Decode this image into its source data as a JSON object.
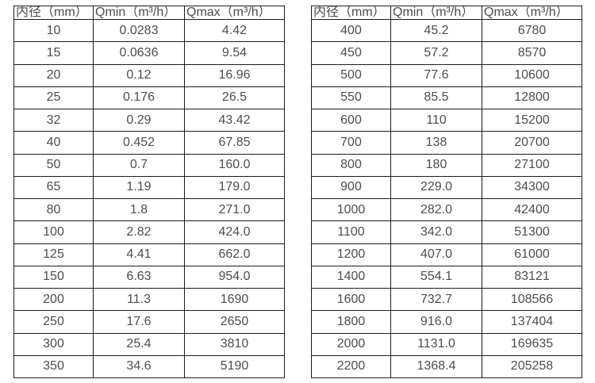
{
  "columns": [
    "内径（mm）",
    "Qmin（m³/h）",
    "Qmax（m³/h）"
  ],
  "tables": [
    {
      "name": "small-diameter-table",
      "rows": [
        [
          "10",
          "0.0283",
          "4.42"
        ],
        [
          "15",
          "0.0636",
          "9.54"
        ],
        [
          "20",
          "0.12",
          "16.96"
        ],
        [
          "25",
          "0.176",
          "26.5"
        ],
        [
          "32",
          "0.29",
          "43.42"
        ],
        [
          "40",
          "0.452",
          "67.85"
        ],
        [
          "50",
          "0.7",
          "160.0"
        ],
        [
          "65",
          "1.19",
          "179.0"
        ],
        [
          "80",
          "1.8",
          "271.0"
        ],
        [
          "100",
          "2.82",
          "424.0"
        ],
        [
          "125",
          "4.41",
          "662.0"
        ],
        [
          "150",
          "6.63",
          "954.0"
        ],
        [
          "200",
          "11.3",
          "1690"
        ],
        [
          "250",
          "17.6",
          "2650"
        ],
        [
          "300",
          "25.4",
          "3810"
        ],
        [
          "350",
          "34.6",
          "5190"
        ]
      ]
    },
    {
      "name": "large-diameter-table",
      "rows": [
        [
          "400",
          "45.2",
          "6780"
        ],
        [
          "450",
          "57.2",
          "8570"
        ],
        [
          "500",
          "77.6",
          "10600"
        ],
        [
          "550",
          "85.5",
          "12800"
        ],
        [
          "600",
          "110",
          "15200"
        ],
        [
          "700",
          "138",
          "20700"
        ],
        [
          "800",
          "180",
          "27100"
        ],
        [
          "900",
          "229.0",
          "34300"
        ],
        [
          "1000",
          "282.0",
          "42400"
        ],
        [
          "1100",
          "342.0",
          "51300"
        ],
        [
          "1200",
          "407.0",
          "61000"
        ],
        [
          "1400",
          "554.1",
          "83121"
        ],
        [
          "1600",
          "732.7",
          "108566"
        ],
        [
          "1800",
          "916.0",
          "137404"
        ],
        [
          "2000",
          "1131.0",
          "169635"
        ],
        [
          "2200",
          "1368.4",
          "205258"
        ]
      ]
    }
  ],
  "colors": {
    "border": "#1c1c1c",
    "text": "#4d4d4d",
    "background": "#ffffff"
  }
}
